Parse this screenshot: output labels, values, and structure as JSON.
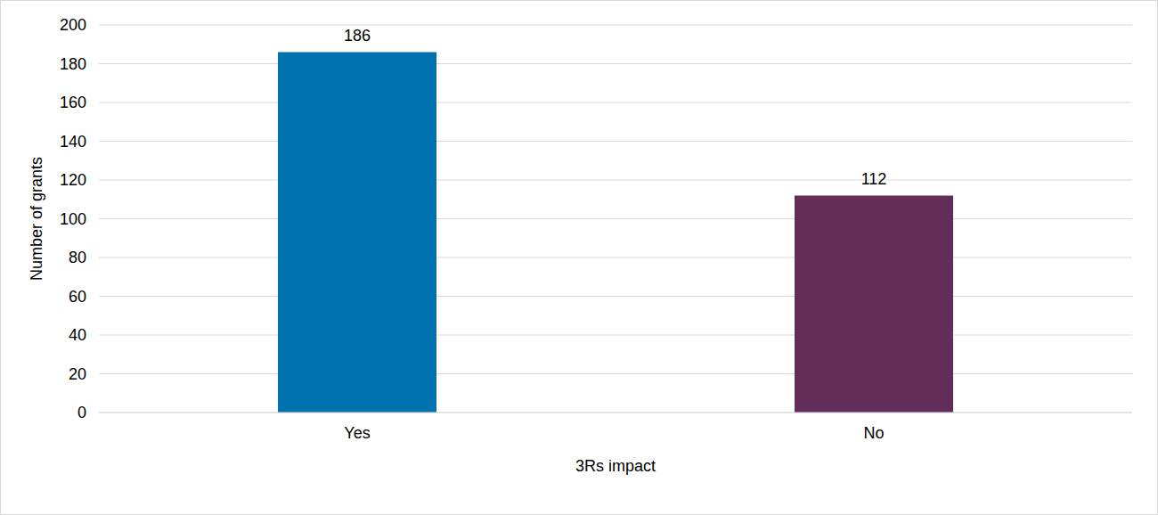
{
  "chart_data": {
    "type": "bar",
    "categories": [
      "Yes",
      "No"
    ],
    "values": [
      186,
      112
    ],
    "colors": [
      "#0073ae",
      "#632d5a"
    ],
    "xlabel": "3Rs impact",
    "ylabel": "Number of grants",
    "ylim": [
      0,
      200
    ],
    "yticks": [
      0,
      20,
      40,
      60,
      80,
      100,
      120,
      140,
      160,
      180,
      200
    ],
    "grid": true,
    "data_labels": true
  }
}
